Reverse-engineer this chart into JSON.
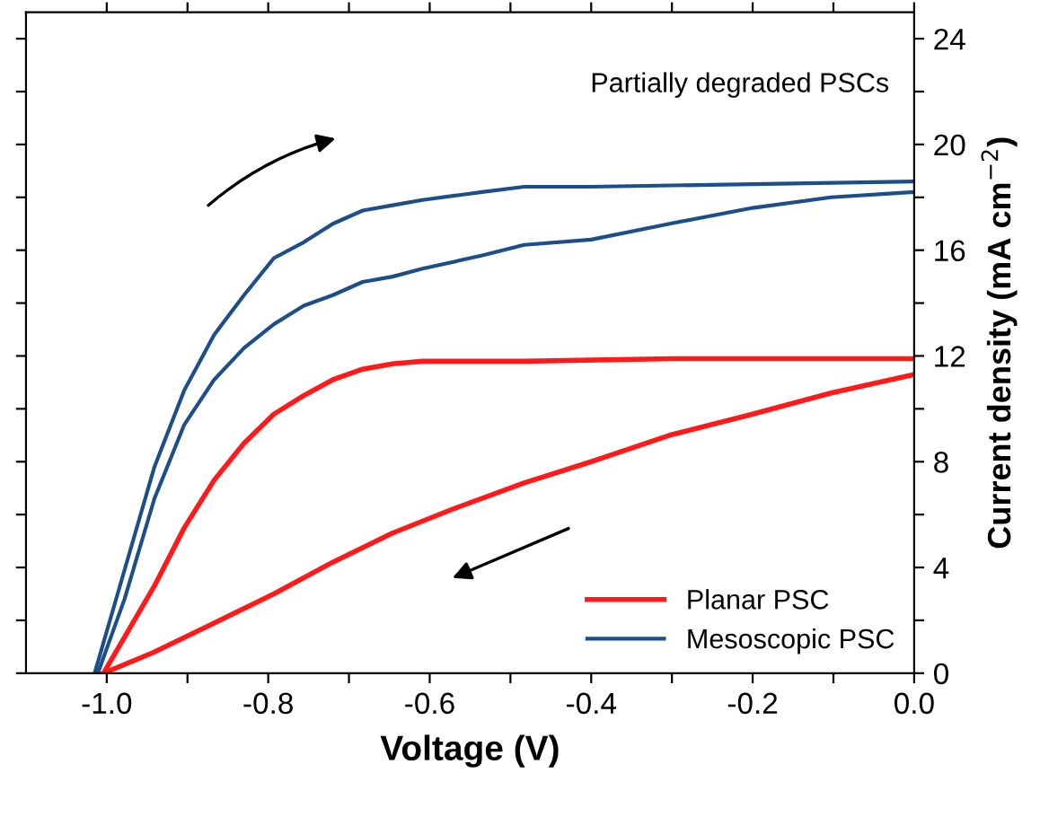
{
  "chart_data": {
    "type": "line",
    "xlabel": "Voltage (V)",
    "ylabel": "Current density (mA cm$^{−2}$)",
    "annotations": [
      "Partially degraded PSCs"
    ],
    "xlim": [
      -1.1,
      0.0
    ],
    "xticks": [
      {
        "value": -1.0,
        "label": "-1.0"
      },
      {
        "value": -0.9,
        "label": null
      },
      {
        "value": -0.8,
        "label": "-0.8"
      },
      {
        "value": -0.7,
        "label": null
      },
      {
        "value": -0.6,
        "label": "-0.6"
      },
      {
        "value": -0.5,
        "label": null
      },
      {
        "value": -0.4,
        "label": "-0.4"
      },
      {
        "value": -0.3,
        "label": null
      },
      {
        "value": -0.2,
        "label": "-0.2"
      },
      {
        "value": -0.1,
        "label": null
      },
      {
        "value": 0.0,
        "label": "0.0"
      }
    ],
    "ylim": [
      0,
      25
    ],
    "yticks": [
      0,
      {
        "value": 2,
        "label": null
      },
      4,
      {
        "value": 6,
        "label": null
      },
      8,
      {
        "value": 10,
        "label": null
      },
      12,
      {
        "value": 14,
        "label": null
      },
      16,
      {
        "value": 18,
        "label": null
      },
      20,
      {
        "value": 22,
        "label": null
      },
      24
    ],
    "legend": "bottom right",
    "grid": false,
    "line_style": "solid",
    "series": [
      {
        "name": "Planar PSC",
        "color": "#ff1a1a",
        "x": [
          -1.004,
          -0.941,
          -0.904,
          -0.867,
          -0.83,
          -0.793,
          -0.756,
          -0.72,
          -0.683,
          -0.646,
          -0.609,
          -0.483,
          -0.3,
          -0.1,
          0.0
        ],
        "values": [
          0,
          3.3,
          5.5,
          7.3,
          8.7,
          9.8,
          10.5,
          11.1,
          11.5,
          11.7,
          11.8,
          11.8,
          11.9,
          11.9,
          11.9
        ]
      },
      {
        "color": "#ff1a1a",
        "x": [
          -1.004,
          -0.941,
          -0.867,
          -0.793,
          -0.72,
          -0.646,
          -0.572,
          -0.483,
          -0.4,
          -0.303,
          -0.2,
          -0.103,
          0.0
        ],
        "values": [
          0,
          0.8,
          1.9,
          3.0,
          4.2,
          5.3,
          6.2,
          7.2,
          8.0,
          9.0,
          9.8,
          10.6,
          11.3
        ]
      },
      {
        "name": "Mesoscopic PSC",
        "color": "#1c4f8a",
        "x": [
          -1.015,
          -0.978,
          -0.941,
          -0.904,
          -0.867,
          -0.83,
          -0.793,
          -0.756,
          -0.72,
          -0.683,
          -0.646,
          -0.609,
          -0.535,
          -0.483,
          -0.4,
          -0.2,
          0.0
        ],
        "values": [
          0,
          3.9,
          7.8,
          10.7,
          12.8,
          14.3,
          15.7,
          16.3,
          17.0,
          17.5,
          17.7,
          17.9,
          18.2,
          18.4,
          18.4,
          18.5,
          18.6
        ]
      },
      {
        "color": "#1c4f8a",
        "x": [
          -1.011,
          -0.978,
          -0.941,
          -0.904,
          -0.867,
          -0.83,
          -0.793,
          -0.756,
          -0.72,
          -0.683,
          -0.646,
          -0.609,
          -0.535,
          -0.483,
          -0.4,
          -0.303,
          -0.2,
          -0.103,
          0.0
        ],
        "values": [
          0,
          2.8,
          6.6,
          9.4,
          11.1,
          12.3,
          13.2,
          13.9,
          14.3,
          14.8,
          15.0,
          15.3,
          15.8,
          16.2,
          16.4,
          17.0,
          17.6,
          18.0,
          18.2
        ]
      }
    ]
  }
}
